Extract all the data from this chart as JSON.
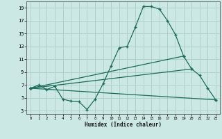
{
  "xlabel": "Humidex (Indice chaleur)",
  "bg_color": "#cce8e4",
  "grid_color": "#b0d0cc",
  "line_color": "#1a6b5a",
  "xlim": [
    -0.5,
    23.5
  ],
  "ylim": [
    2.5,
    20.0
  ],
  "xticks": [
    0,
    1,
    2,
    3,
    4,
    5,
    6,
    7,
    8,
    9,
    10,
    11,
    12,
    13,
    14,
    15,
    16,
    17,
    18,
    19,
    20,
    21,
    22,
    23
  ],
  "yticks": [
    3,
    5,
    7,
    9,
    11,
    13,
    15,
    17,
    19
  ],
  "line_main_x": [
    0,
    1,
    2,
    3,
    4,
    5,
    6,
    7,
    8,
    9,
    10,
    11,
    12,
    13,
    14,
    15,
    16,
    17,
    18,
    19,
    20,
    21,
    22,
    23
  ],
  "line_main_y": [
    6.5,
    7.0,
    6.3,
    6.8,
    4.8,
    4.5,
    4.4,
    3.2,
    4.8,
    7.2,
    10.0,
    12.8,
    13.0,
    16.0,
    19.2,
    19.2,
    18.8,
    17.0,
    14.8,
    11.5,
    9.5,
    8.5,
    6.5,
    4.7
  ],
  "line2_x": [
    0,
    19
  ],
  "line2_y": [
    6.5,
    11.5
  ],
  "line3_x": [
    0,
    20
  ],
  "line3_y": [
    6.5,
    9.5
  ],
  "line4_x": [
    0,
    23
  ],
  "line4_y": [
    6.5,
    4.7
  ]
}
